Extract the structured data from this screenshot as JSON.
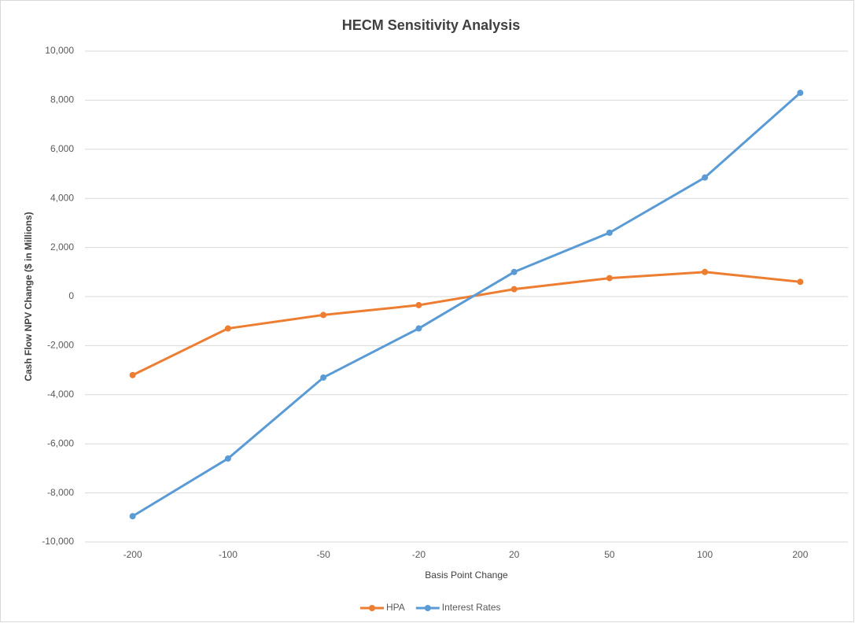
{
  "chart_data": {
    "type": "line",
    "title": "HECM Sensitivity Analysis",
    "x_label": "Basis Point Change",
    "y_label": "Cash Flow NPV Change ($ in Millions)",
    "categories": [
      "-200",
      "-100",
      "-50",
      "-20",
      "20",
      "50",
      "100",
      "200"
    ],
    "series": [
      {
        "name": "HPA",
        "color": "#ed7d31",
        "values": [
          -3200,
          -1300,
          -750,
          -350,
          300,
          750,
          1000,
          600
        ]
      },
      {
        "name": "Interest Rates",
        "color": "#5b9bd5",
        "values": [
          -8950,
          -6600,
          -3300,
          -1300,
          1000,
          2600,
          4850,
          8300
        ]
      }
    ],
    "ylim": [
      -10000,
      10000
    ],
    "yticks": [
      {
        "value": -10000,
        "label": "-10,000"
      },
      {
        "value": -8000,
        "label": "-8,000"
      },
      {
        "value": -6000,
        "label": "-6,000"
      },
      {
        "value": -4000,
        "label": "-4,000"
      },
      {
        "value": -2000,
        "label": "-2,000"
      },
      0,
      {
        "value": 2000,
        "label": "2,000"
      },
      {
        "value": 4000,
        "label": "4,000"
      },
      {
        "value": 6000,
        "label": "6,000"
      },
      {
        "value": 8000,
        "label": "8,000"
      },
      {
        "value": 10000,
        "label": "10,000"
      }
    ],
    "grid": true,
    "legend": "bottom"
  }
}
